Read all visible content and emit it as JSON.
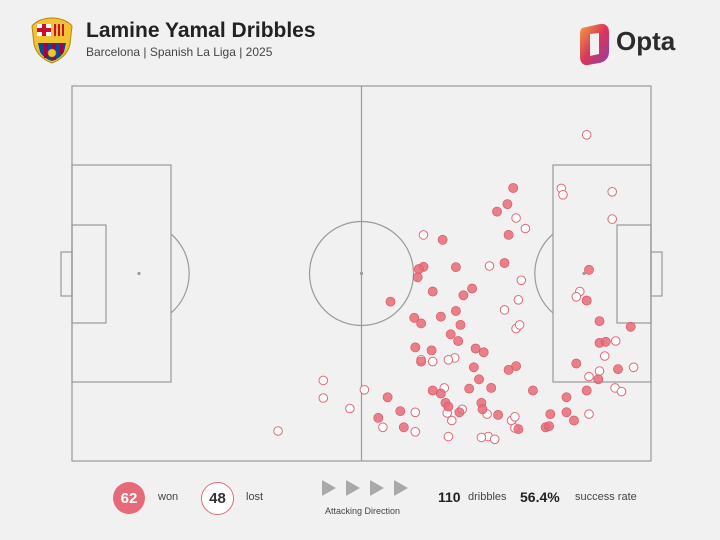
{
  "header": {
    "title": "Lamine Yamal Dribbles",
    "subtitle": "Barcelona | Spanish La Liga | 2025",
    "brand": "Opta",
    "crest_icon": "barcelona-crest-icon",
    "brand_icon": "opta-logo-icon"
  },
  "colors": {
    "background": "#f1f1f1",
    "won": "#e66b78",
    "lost_stroke": "#e26a77",
    "pitch_line": "#9a9a9a",
    "arrow": "#a9a9a9"
  },
  "footer": {
    "won_count": "62",
    "won_label": "won",
    "lost_count": "48",
    "lost_label": "lost",
    "direction_label": "Attacking Direction",
    "total_dribbles": "110",
    "dribbles_label": "dribbles",
    "success_rate": "56.4%",
    "success_label": "success rate"
  },
  "chart_data": {
    "type": "scatter",
    "pitch": {
      "x_range": [
        0,
        100
      ],
      "y_range": [
        0,
        100
      ],
      "attacking_direction": "left-to-right"
    },
    "series": [
      {
        "name": "won",
        "points": [
          [
            89.3,
            51.0
          ],
          [
            76.2,
            72.8
          ],
          [
            75.2,
            68.5
          ],
          [
            75.4,
            60.3
          ],
          [
            73.4,
            66.5
          ],
          [
            74.7,
            52.8
          ],
          [
            66.3,
            51.7
          ],
          [
            64.0,
            59.0
          ],
          [
            59.7,
            49.0
          ],
          [
            60.7,
            51.8
          ],
          [
            62.3,
            45.2
          ],
          [
            67.6,
            44.2
          ],
          [
            69.1,
            46.0
          ],
          [
            67.1,
            36.3
          ],
          [
            69.7,
            30.0
          ],
          [
            71.1,
            29.0
          ],
          [
            69.4,
            25.0
          ],
          [
            70.3,
            21.8
          ],
          [
            76.7,
            25.3
          ],
          [
            75.4,
            24.3
          ],
          [
            60.3,
            36.7
          ],
          [
            63.7,
            38.5
          ],
          [
            66.7,
            32.0
          ],
          [
            65.4,
            33.8
          ],
          [
            63.7,
            18.0
          ],
          [
            64.5,
            15.5
          ],
          [
            66.9,
            13.0
          ],
          [
            70.7,
            15.5
          ],
          [
            72.4,
            19.5
          ],
          [
            73.6,
            12.3
          ],
          [
            81.8,
            9.0
          ],
          [
            82.4,
            9.3
          ],
          [
            85.4,
            17.0
          ],
          [
            85.4,
            13.0
          ],
          [
            87.1,
            26.0
          ],
          [
            91.1,
            31.5
          ],
          [
            92.2,
            31.8
          ],
          [
            88.9,
            42.8
          ],
          [
            79.6,
            18.8
          ],
          [
            77.1,
            8.5
          ],
          [
            82.6,
            12.5
          ],
          [
            88.9,
            18.8
          ],
          [
            90.9,
            21.8
          ],
          [
            66.3,
            40.0
          ],
          [
            55.0,
            42.5
          ],
          [
            59.3,
            30.3
          ],
          [
            54.5,
            17.0
          ],
          [
            52.9,
            11.5
          ],
          [
            60.3,
            26.5
          ],
          [
            62.1,
            29.5
          ],
          [
            59.9,
            51.2
          ],
          [
            59.1,
            38.2
          ],
          [
            70.9,
            13.8
          ],
          [
            68.6,
            19.3
          ],
          [
            56.7,
            13.3
          ],
          [
            57.3,
            9.0
          ],
          [
            86.7,
            10.8
          ],
          [
            91.1,
            37.3
          ],
          [
            94.3,
            24.5
          ],
          [
            96.5,
            35.8
          ],
          [
            62.3,
            18.8
          ],
          [
            65.0,
            14.5
          ]
        ]
      },
      {
        "name": "lost",
        "points": [
          [
            88.9,
            87.0
          ],
          [
            84.5,
            72.7
          ],
          [
            84.8,
            71.0
          ],
          [
            93.3,
            71.8
          ],
          [
            93.3,
            64.5
          ],
          [
            76.7,
            64.8
          ],
          [
            78.3,
            62.0
          ],
          [
            60.7,
            60.3
          ],
          [
            72.1,
            52.0
          ],
          [
            77.6,
            48.2
          ],
          [
            77.1,
            43.0
          ],
          [
            74.7,
            40.3
          ],
          [
            76.7,
            35.3
          ],
          [
            77.3,
            36.3
          ],
          [
            87.7,
            45.2
          ],
          [
            87.1,
            43.8
          ],
          [
            93.9,
            32.0
          ],
          [
            92.0,
            28.0
          ],
          [
            97.0,
            25.0
          ],
          [
            93.8,
            19.5
          ],
          [
            94.9,
            18.5
          ],
          [
            89.3,
            22.5
          ],
          [
            91.1,
            24.0
          ],
          [
            89.3,
            12.5
          ],
          [
            75.9,
            10.8
          ],
          [
            76.5,
            11.8
          ],
          [
            71.9,
            6.5
          ],
          [
            73.0,
            5.8
          ],
          [
            70.7,
            6.3
          ],
          [
            76.5,
            8.8
          ],
          [
            71.7,
            12.5
          ],
          [
            64.8,
            12.8
          ],
          [
            67.4,
            13.8
          ],
          [
            65.0,
            6.5
          ],
          [
            65.6,
            10.8
          ],
          [
            66.1,
            27.5
          ],
          [
            65.0,
            27.0
          ],
          [
            62.3,
            26.5
          ],
          [
            64.3,
            19.5
          ],
          [
            60.3,
            27.0
          ],
          [
            59.3,
            13.0
          ],
          [
            59.3,
            7.8
          ],
          [
            53.7,
            9.0
          ],
          [
            50.5,
            19.0
          ],
          [
            43.4,
            16.8
          ],
          [
            35.6,
            8.0
          ],
          [
            48.0,
            14.0
          ],
          [
            43.4,
            21.5
          ]
        ]
      }
    ]
  }
}
